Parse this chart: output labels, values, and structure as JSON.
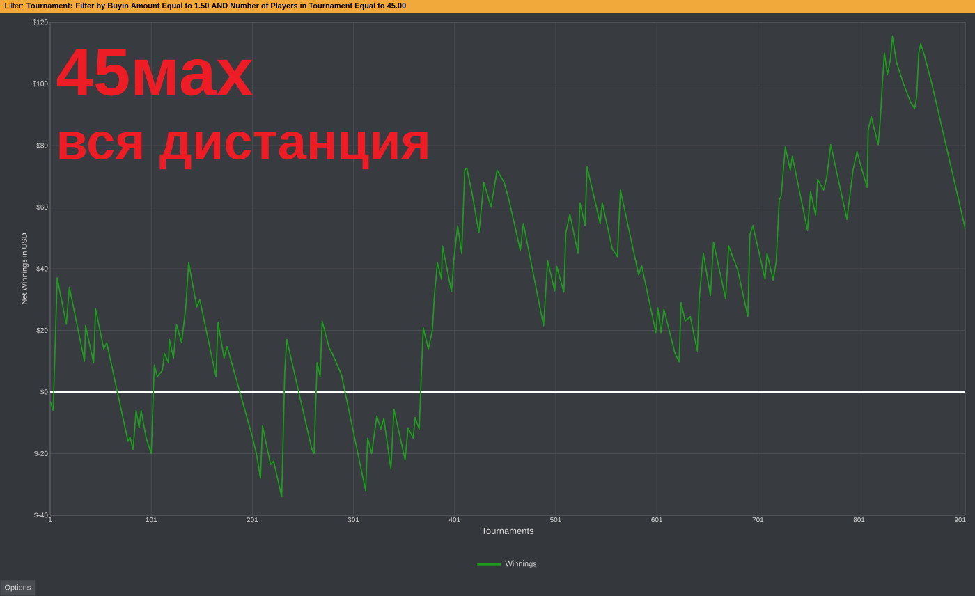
{
  "chart_data": {
    "type": "line",
    "title": "Filter: **Tournament: Filter by Buyin Amount Equal to 1.50 AND Number of Players in Tournament Equal to 45.00**",
    "xlabel": "Tournaments",
    "ylabel": "Net Winnings in USD",
    "annotations": [
      "45мах",
      "вся дистанция",
      "Options"
    ],
    "xlim": [
      1,
      906
    ],
    "xticks": [
      1,
      101,
      201,
      301,
      401,
      501,
      601,
      701,
      801,
      901
    ],
    "ylim": [
      -40,
      120
    ],
    "yticks": [
      {
        "value": -40,
        "label": "$-40"
      },
      {
        "value": -20,
        "label": "$-20"
      },
      {
        "value": 0,
        "label": "$0"
      },
      {
        "value": 20,
        "label": "$20"
      },
      {
        "value": 40,
        "label": "$40"
      },
      {
        "value": 60,
        "label": "$60"
      },
      {
        "value": 80,
        "label": "$80"
      },
      {
        "value": 100,
        "label": "$100"
      },
      {
        "value": 120,
        "label": "$120"
      }
    ],
    "grid": true,
    "legend": "bottom",
    "ref_lines": [
      {
        "axis": "y",
        "value": 0,
        "color": "#ffffff"
      }
    ],
    "series": [
      {
        "name": "Winnings",
        "color": "#1e9a1e",
        "x": [
          1,
          4,
          8,
          17,
          20,
          35,
          36,
          44,
          46,
          54,
          57,
          78,
          80,
          83,
          86,
          89,
          91,
          96,
          101,
          104,
          107,
          112,
          114,
          118,
          119,
          123,
          126,
          131,
          135,
          138,
          146,
          149,
          165,
          167,
          173,
          176,
          201,
          205,
          209,
          211,
          219,
          222,
          230,
          233,
          235,
          260,
          262,
          265,
          268,
          270,
          277,
          280,
          289,
          313,
          315,
          319,
          324,
          328,
          331,
          338,
          341,
          352,
          355,
          360,
          362,
          366,
          368,
          370,
          375,
          379,
          381,
          384,
          388,
          389,
          398,
          400,
          404,
          408,
          411,
          413,
          418,
          425,
          430,
          437,
          443,
          450,
          455,
          466,
          469,
          489,
          493,
          500,
          502,
          509,
          511,
          515,
          523,
          525,
          530,
          532,
          545,
          547,
          557,
          562,
          565,
          583,
          586,
          600,
          602,
          605,
          608,
          619,
          623,
          625,
          629,
          634,
          641,
          643,
          647,
          654,
          657,
          669,
          672,
          681,
          691,
          693,
          696,
          708,
          710,
          716,
          719,
          722,
          724,
          728,
          733,
          735,
          750,
          753,
          758,
          760,
          766,
          769,
          773,
          789,
          795,
          799,
          804,
          809,
          810,
          813,
          820,
          822,
          824,
          826,
          829,
          832,
          834,
          838,
          845,
          852,
          856,
          858,
          860,
          862,
          865,
          873,
          906
        ],
        "values": [
          -3,
          -6,
          37,
          22,
          34,
          10,
          21.5,
          9.5,
          27,
          14,
          16,
          -16,
          -14.6,
          -18.7,
          -6,
          -11.6,
          -6,
          -15,
          -20,
          8.7,
          5,
          7,
          12.5,
          9.5,
          17,
          11,
          21.8,
          16,
          27,
          42,
          27.6,
          30,
          5,
          22.7,
          11,
          14.8,
          -14.6,
          -20,
          -28,
          -11,
          -23.6,
          -22.4,
          -34,
          6.5,
          17,
          -18.8,
          -20,
          9.5,
          5,
          23,
          14.3,
          12.5,
          5.7,
          -32,
          -15,
          -20,
          -7.8,
          -12,
          -8.6,
          -25,
          -5.6,
          -22,
          -11.6,
          -15,
          -8.3,
          -12,
          5,
          20.8,
          14,
          20,
          31.3,
          42,
          36.6,
          47.4,
          32.5,
          42,
          54,
          45,
          72,
          72.7,
          65,
          51.7,
          68,
          60,
          72,
          68,
          62,
          46,
          54.7,
          21.5,
          42.6,
          32.8,
          40.8,
          32.4,
          51.7,
          57.7,
          45,
          61.4,
          54,
          73,
          54.7,
          61.4,
          46.4,
          44,
          65.5,
          38,
          41,
          19.3,
          27.3,
          19.3,
          26.8,
          12.5,
          9.8,
          29,
          23,
          24.5,
          13.3,
          30.6,
          45,
          31.3,
          48.6,
          30.3,
          47.4,
          39.6,
          24.5,
          51,
          54,
          36.6,
          45,
          36.3,
          42.3,
          62.2,
          63.7,
          79.5,
          72,
          76.5,
          52.4,
          65,
          57.4,
          69,
          65.5,
          69.7,
          80.3,
          56,
          72,
          78,
          72,
          66.4,
          85,
          89.3,
          80.3,
          88.6,
          100,
          110,
          103,
          108,
          115.5,
          107,
          100,
          94,
          92,
          96,
          110,
          113,
          110,
          100,
          53
        ]
      }
    ]
  }
}
